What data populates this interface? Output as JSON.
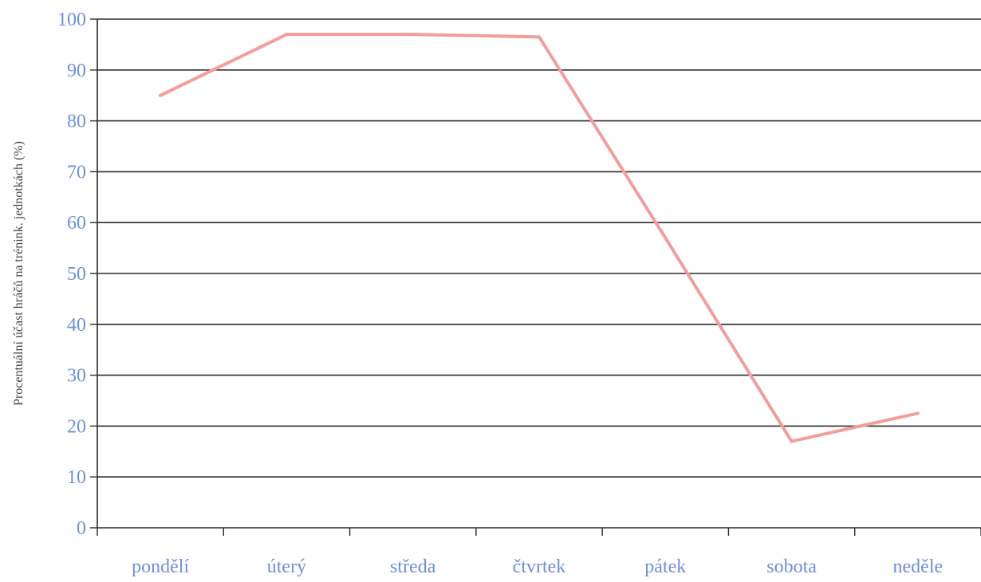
{
  "colors": {
    "series": "#f19e9c",
    "tick_labels": "#6f8fd6",
    "grid": "#2a2a2a"
  },
  "chart_data": {
    "type": "line",
    "title": "",
    "xlabel": "",
    "ylabel": "Procentuální účast hráčů na trénink. jednotkách (%)",
    "categories": [
      "pondělí",
      "úterý",
      "středa",
      "čtvrtek",
      "pátek",
      "sobota",
      "neděle"
    ],
    "category_labels": [
      "pondělí",
      "úterý",
      "středa",
      "čtvrtek",
      "pátek",
      "sobota",
      "neděle"
    ],
    "series": [
      {
        "values": [
          85,
          97,
          97,
          96.5,
          57,
          17,
          22.5
        ]
      }
    ],
    "ylim": [
      0,
      100
    ],
    "yticks": [
      0,
      10,
      20,
      30,
      40,
      50,
      60,
      70,
      80,
      90,
      100
    ],
    "grid": true,
    "legend": "none"
  }
}
